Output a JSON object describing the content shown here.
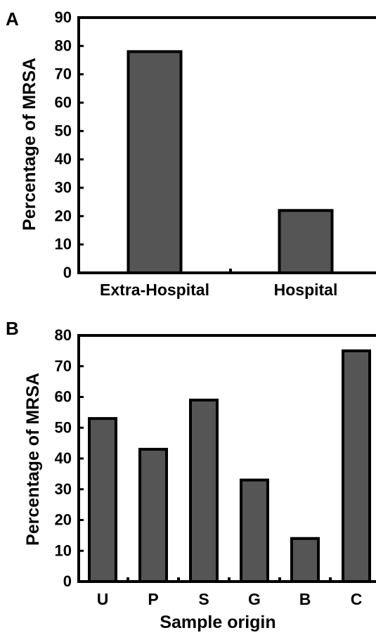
{
  "chart_data": [
    {
      "type": "bar",
      "panel": "A",
      "categories": [
        "Extra-Hospital",
        "Hospital"
      ],
      "values": [
        78,
        22
      ],
      "title": "",
      "xlabel": "",
      "ylabel": "Percentage of MRSA",
      "ylim": [
        0,
        90
      ],
      "yticks": [
        0,
        10,
        20,
        30,
        40,
        50,
        60,
        70,
        80,
        90
      ],
      "grid": false,
      "bar_color": "#555555"
    },
    {
      "type": "bar",
      "panel": "B",
      "categories": [
        "U",
        "P",
        "S",
        "G",
        "B",
        "C"
      ],
      "values": [
        53,
        43,
        59,
        33,
        14,
        75
      ],
      "title": "",
      "xlabel": "Sample origin",
      "ylabel": "Percentage of MRSA",
      "ylim": [
        0,
        80
      ],
      "yticks": [
        0,
        10,
        20,
        30,
        40,
        50,
        60,
        70,
        80
      ],
      "grid": false,
      "bar_color": "#555555"
    }
  ]
}
